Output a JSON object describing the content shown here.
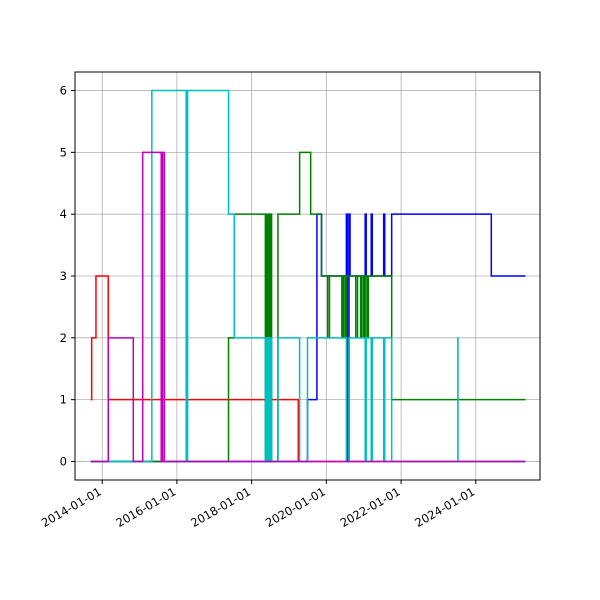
{
  "chart_data": {
    "type": "line",
    "title": "",
    "xlabel": "",
    "ylabel": "",
    "x_axis": "date",
    "xlim": [
      "2013-04-10",
      "2025-09-20"
    ],
    "ylim": [
      -0.3,
      6.3
    ],
    "grid": true,
    "xticks": [
      "2014-01-01",
      "2016-01-01",
      "2018-01-01",
      "2020-01-01",
      "2022-01-01",
      "2024-01-01"
    ],
    "yticks": [
      0,
      1,
      2,
      3,
      4,
      5,
      6
    ],
    "step": "post",
    "series": [
      {
        "color": "#ff0000",
        "points": [
          [
            "2013-09-10",
            1
          ],
          [
            "2013-09-20",
            2
          ],
          [
            "2013-11-01",
            3
          ],
          [
            "2014-03-01",
            1
          ],
          [
            "2019-04-01",
            1
          ],
          [
            "2019-04-02",
            0
          ],
          [
            "2025-05-01",
            0
          ]
        ]
      },
      {
        "color": "#0000ff",
        "points": [
          [
            "2013-09-10",
            0
          ],
          [
            "2019-07-01",
            1
          ],
          [
            "2019-10-01",
            4
          ],
          [
            "2019-11-15",
            3
          ],
          [
            "2020-07-15",
            4
          ],
          [
            "2020-07-25",
            0
          ],
          [
            "2020-08-10",
            4
          ],
          [
            "2020-08-20",
            3
          ],
          [
            "2021-01-15",
            4
          ],
          [
            "2021-01-25",
            3
          ],
          [
            "2021-03-15",
            4
          ],
          [
            "2021-03-25",
            3
          ],
          [
            "2021-07-15",
            4
          ],
          [
            "2021-07-25",
            3
          ],
          [
            "2021-10-01",
            4
          ],
          [
            "2024-06-01",
            3
          ],
          [
            "2025-05-01",
            3
          ]
        ]
      },
      {
        "color": "#008000",
        "points": [
          [
            "2013-09-10",
            0
          ],
          [
            "2017-05-20",
            2
          ],
          [
            "2017-07-15",
            4
          ],
          [
            "2018-05-15",
            0
          ],
          [
            "2018-05-25",
            4
          ],
          [
            "2018-06-05",
            0
          ],
          [
            "2018-06-15",
            4
          ],
          [
            "2018-06-25",
            0
          ],
          [
            "2018-07-05",
            4
          ],
          [
            "2018-07-15",
            0
          ],
          [
            "2018-09-15",
            4
          ],
          [
            "2019-04-15",
            5
          ],
          [
            "2019-08-01",
            4
          ],
          [
            "2019-11-15",
            3
          ],
          [
            "2020-01-15",
            2
          ],
          [
            "2020-02-01",
            3
          ],
          [
            "2020-06-01",
            2
          ],
          [
            "2020-06-15",
            3
          ],
          [
            "2020-07-01",
            2
          ],
          [
            "2020-07-15",
            3
          ],
          [
            "2020-10-15",
            2
          ],
          [
            "2020-11-01",
            3
          ],
          [
            "2020-12-01",
            2
          ],
          [
            "2020-12-15",
            3
          ],
          [
            "2021-01-01",
            2
          ],
          [
            "2021-01-15",
            3
          ],
          [
            "2021-02-01",
            2
          ],
          [
            "2021-02-15",
            3
          ],
          [
            "2021-10-01",
            1
          ],
          [
            "2025-05-01",
            1
          ]
        ]
      },
      {
        "color": "#00bfbf",
        "points": [
          [
            "2013-09-10",
            0
          ],
          [
            "2015-05-01",
            6
          ],
          [
            "2016-04-01",
            0
          ],
          [
            "2016-04-15",
            6
          ],
          [
            "2017-05-20",
            4
          ],
          [
            "2017-07-15",
            2
          ],
          [
            "2018-05-15",
            0
          ],
          [
            "2018-05-25",
            2
          ],
          [
            "2018-06-05",
            0
          ],
          [
            "2018-06-15",
            2
          ],
          [
            "2018-06-25",
            0
          ],
          [
            "2018-07-05",
            2
          ],
          [
            "2018-07-15",
            0
          ],
          [
            "2018-09-15",
            2
          ],
          [
            "2019-04-15",
            0
          ],
          [
            "2019-07-01",
            2
          ],
          [
            "2020-07-15",
            0
          ],
          [
            "2020-08-10",
            2
          ],
          [
            "2021-01-15",
            0
          ],
          [
            "2021-01-25",
            2
          ],
          [
            "2021-03-15",
            0
          ],
          [
            "2021-03-25",
            2
          ],
          [
            "2021-07-15",
            0
          ],
          [
            "2021-07-25",
            2
          ],
          [
            "2021-10-01",
            0
          ],
          [
            "2023-01-10",
            0
          ],
          [
            "2023-07-10",
            2
          ],
          [
            "2023-07-11",
            0
          ],
          [
            "2025-05-01",
            0
          ]
        ]
      },
      {
        "color": "#bf00bf",
        "points": [
          [
            "2013-09-10",
            0
          ],
          [
            "2014-03-01",
            2
          ],
          [
            "2014-11-01",
            0
          ],
          [
            "2015-02-01",
            5
          ],
          [
            "2015-08-01",
            0
          ],
          [
            "2015-08-15",
            5
          ],
          [
            "2015-09-01",
            0
          ],
          [
            "2025-05-01",
            0
          ]
        ]
      }
    ]
  }
}
